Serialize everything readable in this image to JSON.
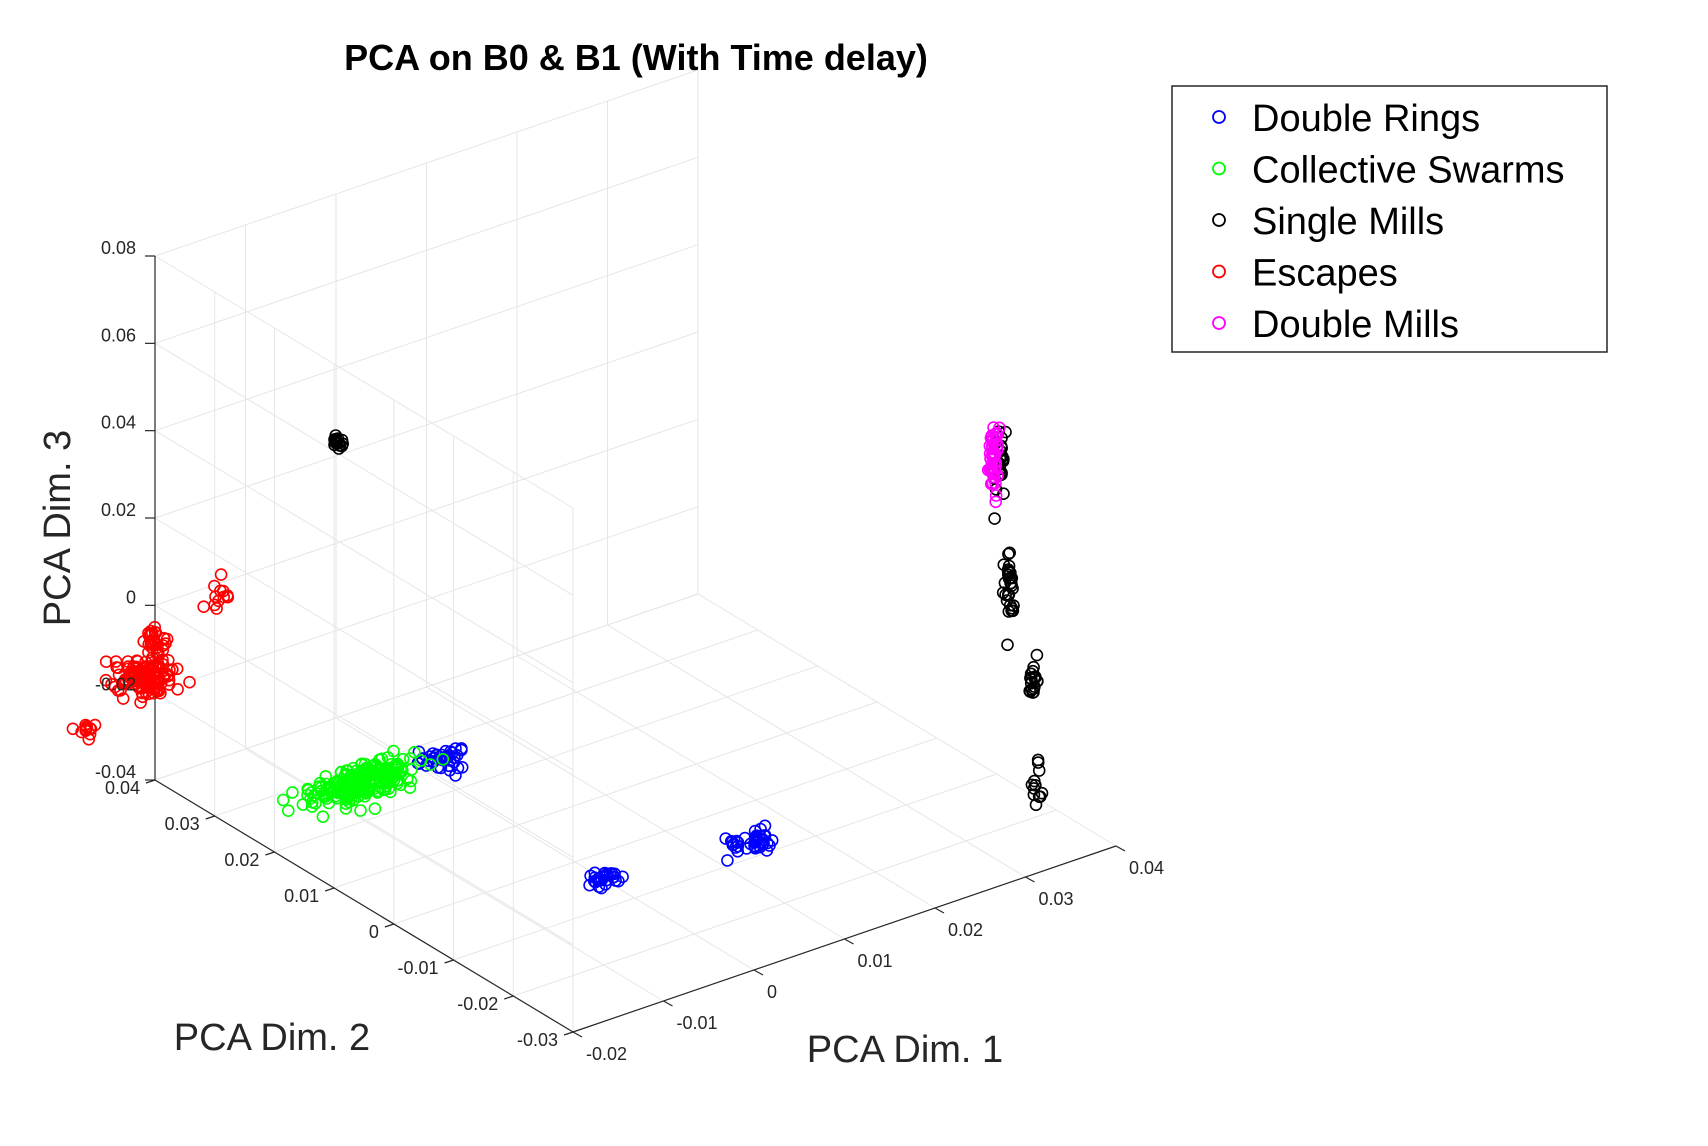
{
  "chart_data": {
    "type": "scatter",
    "title": "PCA on B0 & B1 (With Time delay)",
    "xlabel": "PCA Dim. 1",
    "ylabel": "PCA Dim. 2",
    "zlabel": "PCA Dim. 3",
    "xlim": [
      -0.02,
      0.04
    ],
    "ylim": [
      -0.03,
      0.04
    ],
    "zlim": [
      -0.04,
      0.08
    ],
    "xticks": [
      "-0.02",
      "-0.01",
      "0",
      "0.01",
      "0.02",
      "0.03",
      "0.04"
    ],
    "yticks": [
      "-0.03",
      "-0.02",
      "-0.01",
      "0",
      "0.01",
      "0.02",
      "0.03",
      "0.04"
    ],
    "zticks": [
      "-0.04",
      "-0.02",
      "0",
      "0.02",
      "0.04",
      "0.06",
      "0.08"
    ],
    "grid": true,
    "legend_position": "top-right",
    "marker": "open-circle",
    "series": [
      {
        "name": "Double Rings",
        "color": "#0000ff",
        "clusters": [
          {
            "center": [
              -0.005,
              0.015,
              -0.025
            ],
            "spread": [
              0.002,
              0.002,
              0.0015
            ],
            "count": 40
          },
          {
            "center": [
              0.0,
              -0.005,
              -0.04
            ],
            "spread": [
              0.0015,
              0.001,
              0.001
            ],
            "count": 30
          },
          {
            "center": [
              0.015,
              -0.007,
              -0.04
            ],
            "spread": [
              0.0025,
              0.0015,
              0.0015
            ],
            "count": 40
          }
        ]
      },
      {
        "name": "Collective Swarms",
        "color": "#00ff00",
        "clusters": [
          {
            "center": [
              -0.0135,
              0.0155,
              -0.025
            ],
            "spread": [
              0.0045,
              0.002,
              0.0018
            ],
            "count": 260
          }
        ]
      },
      {
        "name": "Single Mills",
        "color": "#000000",
        "clusters": [
          {
            "center": [
              -0.029,
              -0.004,
              0.08
            ],
            "spread": [
              0.0005,
              0.0005,
              0.001
            ],
            "count": 15
          },
          {
            "center": [
              0.0325,
              -0.022,
              0.045
            ],
            "spread": [
              0.0005,
              0.0005,
              0.009
            ],
            "count": 30
          },
          {
            "center": [
              0.0335,
              -0.022,
              0.018
            ],
            "spread": [
              0.0005,
              0.0005,
              0.008
            ],
            "count": 30
          },
          {
            "center": [
              0.036,
              -0.022,
              -0.006
            ],
            "spread": [
              0.0005,
              0.0005,
              0.005
            ],
            "count": 20
          },
          {
            "center": [
              0.0365,
              -0.022,
              -0.03
            ],
            "spread": [
              0.0005,
              0.0005,
              0.004
            ],
            "count": 12
          }
        ]
      },
      {
        "name": "Escapes",
        "color": "#ff0000",
        "clusters": [
          {
            "center": [
              -0.0235,
              0.0365,
              -0.0115
            ],
            "spread": [
              0.002,
              0.003,
              0.003
            ],
            "count": 130
          },
          {
            "center": [
              -0.0205,
              0.0395,
              -0.0075
            ],
            "spread": [
              0.001,
              0.001,
              0.002
            ],
            "count": 30
          },
          {
            "center": [
              -0.015,
              0.037,
              0.001
            ],
            "spread": [
              0.0012,
              0.0012,
              0.0025
            ],
            "count": 12
          },
          {
            "center": [
              -0.0285,
              0.0385,
              -0.0215
            ],
            "spread": [
              0.0008,
              0.0008,
              0.0015
            ],
            "count": 12
          }
        ]
      },
      {
        "name": "Double Mills",
        "color": "#ff00ff",
        "clusters": [
          {
            "center": [
              0.0318,
              -0.022,
              0.0475
            ],
            "spread": [
              0.0004,
              0.0004,
              0.006
            ],
            "count": 50
          }
        ]
      }
    ]
  }
}
